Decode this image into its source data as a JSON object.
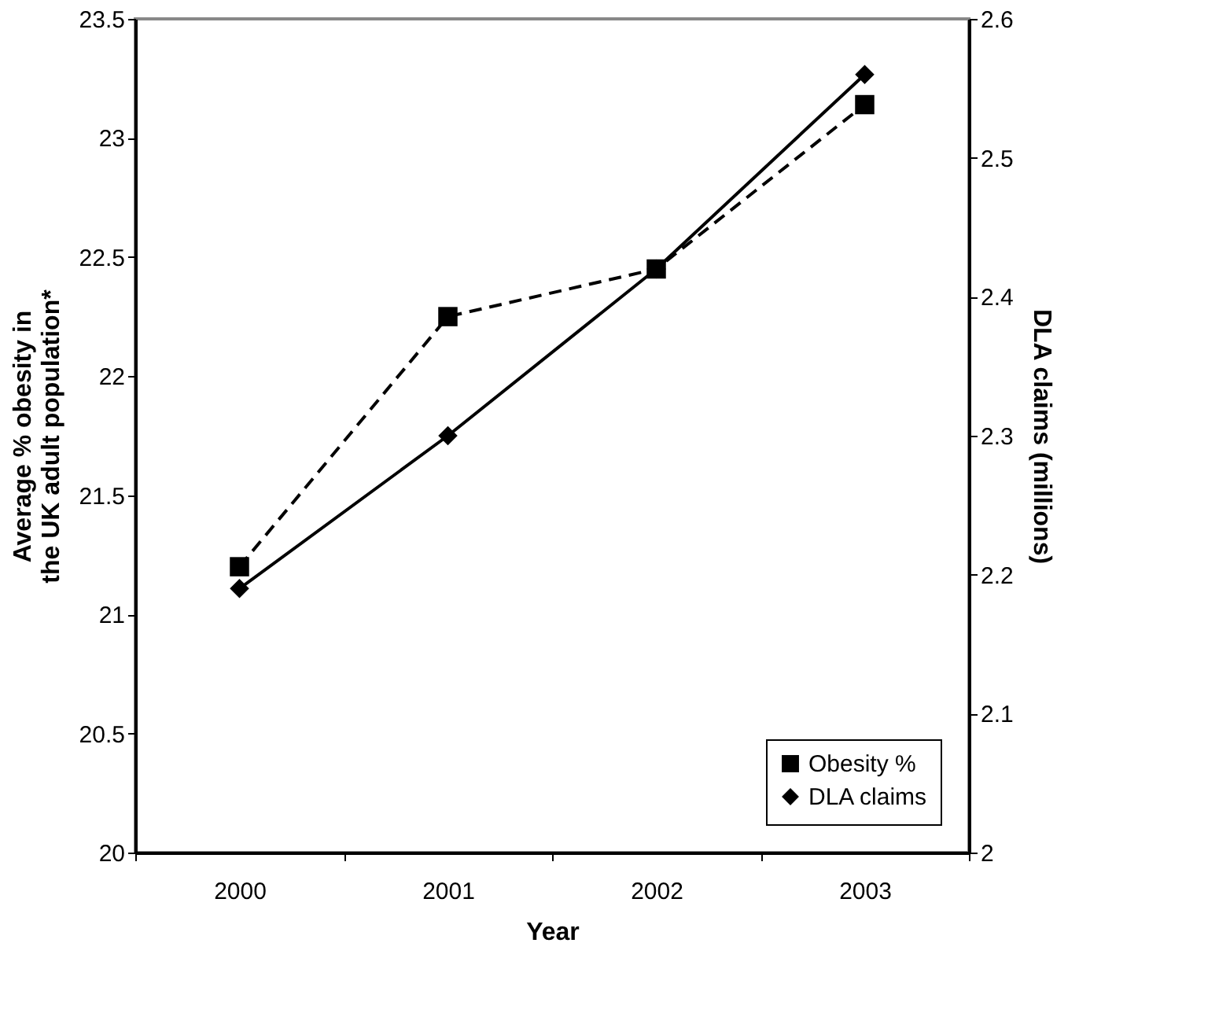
{
  "chart_data": {
    "type": "line",
    "xlabel": "Year",
    "ylabel": "Average % obesity in the UK adult population*",
    "y2label": "DLA claims (millions)",
    "categories": [
      "2000",
      "2001",
      "2002",
      "2003"
    ],
    "series": [
      {
        "name": "Obesity %",
        "color": "#000000",
        "values": [
          21.2,
          22.25,
          22.45,
          23.14
        ],
        "marker": "square",
        "line_style": "dashed"
      },
      {
        "name": "DLA claims",
        "color": "#000000",
        "values": [
          2.19,
          2.3,
          2.42,
          2.56
        ],
        "marker": "diamond",
        "line_style": "solid",
        "axis": "y2"
      }
    ],
    "ylim": [
      20,
      23.5
    ],
    "yticks": [
      20,
      20.5,
      21,
      21.5,
      22,
      22.5,
      23,
      23.5
    ],
    "y2lim": [
      2,
      2.6
    ],
    "y2ticks": [
      2,
      2.1,
      2.2,
      2.3,
      2.4,
      2.5,
      2.6
    ],
    "grid": false,
    "legend": "bottom right"
  }
}
